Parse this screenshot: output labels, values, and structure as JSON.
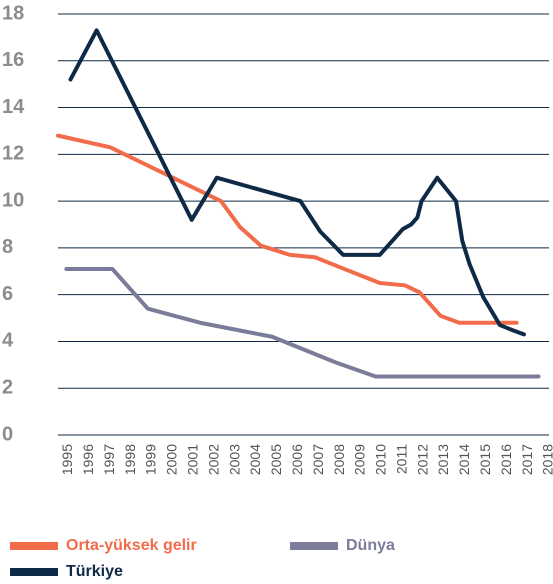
{
  "chart_data": {
    "type": "line",
    "xlim": [
      1994.5,
      2018
    ],
    "xticks": [
      1995,
      1996,
      1997,
      1998,
      1999,
      2000,
      2001,
      2002,
      2003,
      2004,
      2005,
      2006,
      2007,
      2008,
      2009,
      2010,
      2011,
      2012,
      2013,
      2014,
      2015,
      2016,
      2017,
      2018
    ],
    "ylim": [
      0,
      18
    ],
    "yticks": [
      0,
      2,
      4,
      6,
      8,
      10,
      12,
      14,
      16,
      18
    ],
    "grid": true,
    "legend": "bottom",
    "series": [
      {
        "name": "Orta-yüksek gelir",
        "color": "#f26b4a",
        "x": [
          1994.5,
          1997,
          2002.3,
          2003.2,
          2004.2,
          2005.6,
          2006.8,
          2008.2,
          2009.9,
          2011.1,
          2011.8,
          2012.8,
          2013.7,
          2016.45
        ],
        "values": [
          12.8,
          12.3,
          10.0,
          8.9,
          8.1,
          7.7,
          7.6,
          7.1,
          6.5,
          6.4,
          6.1,
          5.1,
          4.8,
          4.8
        ]
      },
      {
        "name": "Dünya",
        "color": "#7b7c99",
        "x": [
          1994.9,
          1997.1,
          1998.8,
          2001.3,
          2004.75,
          2007.8,
          2009.7,
          2017.5
        ],
        "values": [
          7.1,
          7.1,
          5.4,
          4.8,
          4.2,
          3.1,
          2.5,
          2.5
        ]
      },
      {
        "name": "Türkiye",
        "color": "#0e2a47",
        "x": [
          1995.1,
          1996.35,
          2000.9,
          2002.1,
          2006.1,
          2007.05,
          2008.15,
          2009.9,
          2011.0,
          2011.4,
          2011.7,
          2011.9,
          2012.65,
          2013.55,
          2013.85,
          2014.2,
          2014.85,
          2015.65,
          2016.2,
          2016.8
        ],
        "values": [
          15.2,
          17.3,
          9.2,
          11.0,
          10.0,
          8.7,
          7.7,
          7.7,
          8.8,
          9.0,
          9.3,
          10.0,
          11.0,
          10.0,
          8.3,
          7.3,
          5.9,
          4.7,
          4.5,
          4.3
        ]
      }
    ]
  }
}
